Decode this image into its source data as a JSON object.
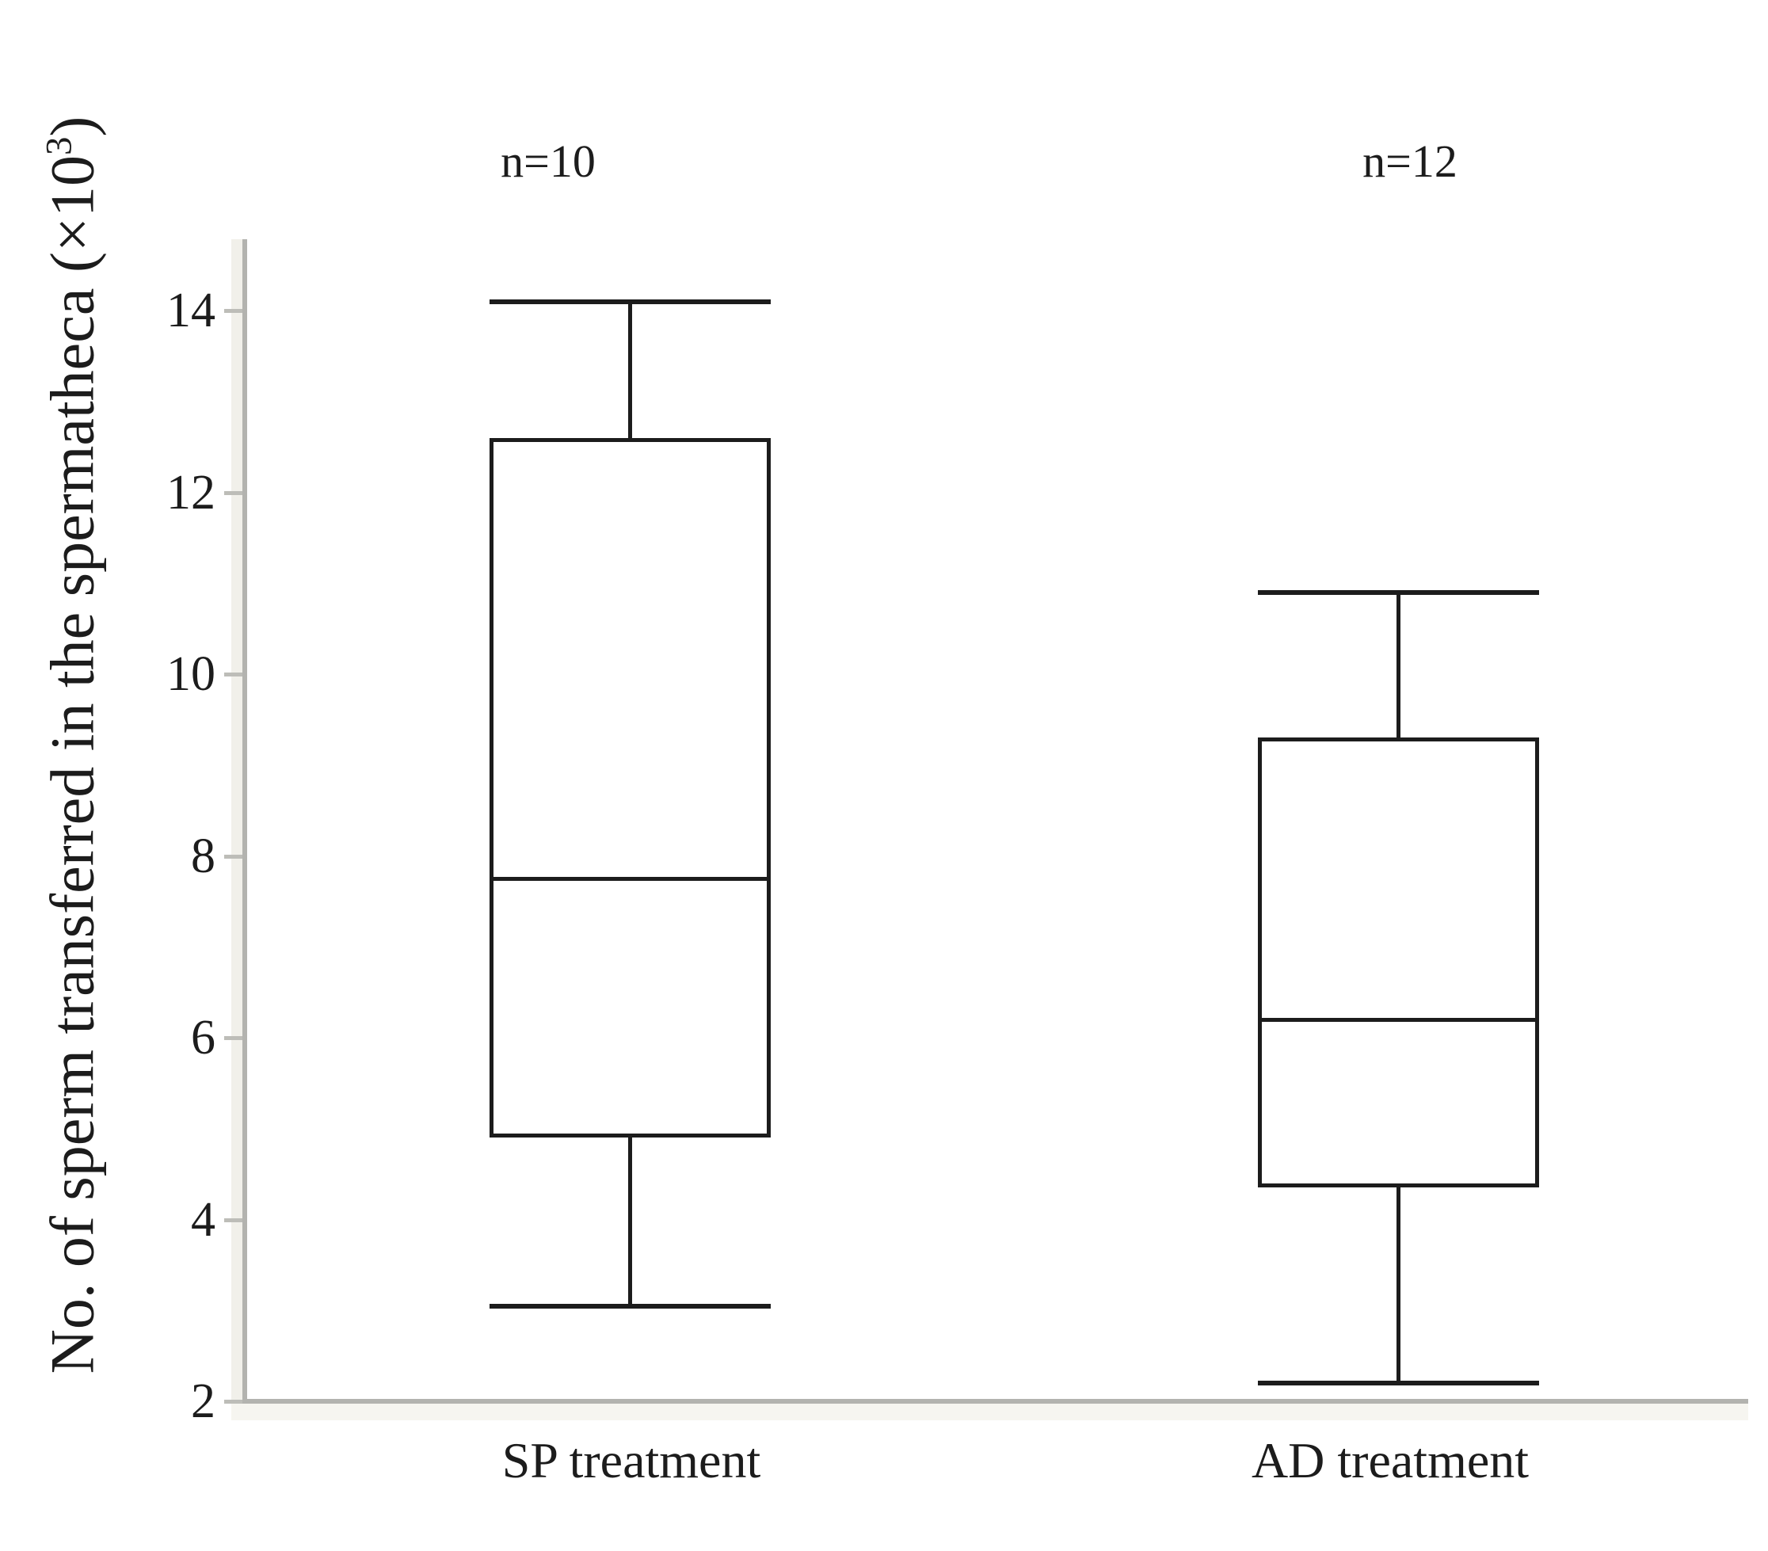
{
  "figure": {
    "background": "#ffffff",
    "axis_color": "#b3b3af",
    "axis_band_color": "#f1f0ea",
    "box_line_color": "#1c1c1c"
  },
  "chart_data": {
    "type": "boxplot",
    "title": "",
    "xlabel": "",
    "ylabel_prefix": "No. of sperm transferred in the spermatheca (×10",
    "ylabel_sup": "3",
    "ylabel_suffix": ")",
    "categories": [
      "SP treatment",
      "AD treatment"
    ],
    "yticks": [
      14,
      12,
      10,
      8,
      6,
      4,
      2
    ],
    "ylim": [
      2,
      14.8
    ],
    "grid": false,
    "legend": false,
    "series": [
      {
        "name": "SP treatment",
        "label": "n=10",
        "n": 10,
        "whisker_low": 3.05,
        "q1": 4.9,
        "median": 7.75,
        "q3": 12.6,
        "whisker_high": 14.1
      },
      {
        "name": "AD treatment",
        "label": "n=12",
        "n": 12,
        "whisker_low": 2.2,
        "q1": 4.35,
        "median": 6.2,
        "q3": 9.3,
        "whisker_high": 10.9
      }
    ]
  }
}
